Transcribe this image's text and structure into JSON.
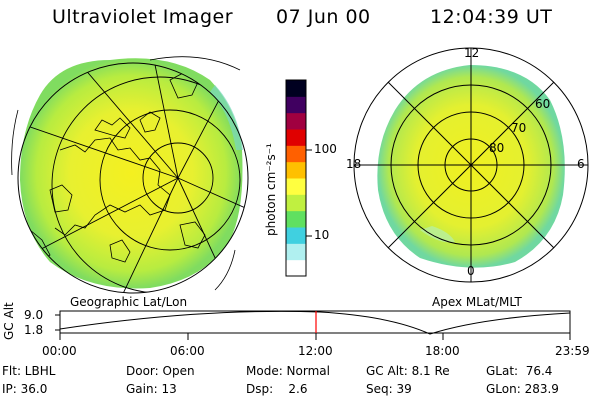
{
  "header": {
    "instrument": "Ultraviolet Imager",
    "date": "07 Jun 00",
    "time": "12:04:39 UT"
  },
  "left_panel": {
    "caption": "Geographic Lat/Lon"
  },
  "right_panel": {
    "caption": "Apex MLat/MLT",
    "mlt_labels": [
      "12",
      "18",
      "6",
      "0"
    ],
    "lat_labels": [
      "60",
      "70",
      "80"
    ]
  },
  "colorbar": {
    "unit_label": "photon cm⁻²s⁻¹",
    "tick_100": "100",
    "tick_10": "10",
    "colors": [
      "#ffffff",
      "#b0f0f0",
      "#40d0e0",
      "#60e060",
      "#c0f040",
      "#ffff40",
      "#ffc000",
      "#ff6000",
      "#e00000",
      "#a00040",
      "#400060",
      "#000020"
    ]
  },
  "altitude_plot": {
    "ylabel": "GC Alt",
    "ymax_label": "9.0",
    "ymin_label": "1.8",
    "x_ticks": [
      "00:00",
      "06:00",
      "12:00",
      "18:00",
      "23:59"
    ],
    "marker_color": "#ff0000"
  },
  "info": {
    "flt": "Flt: LBHL",
    "ip": "IP: 36.0",
    "door": "Door: Open",
    "gain": "Gain: 13",
    "mode": "Mode: Normal",
    "dsp": "Dsp:    2.6",
    "gcalt": "GC Alt: 8.1 Re",
    "seq": "Seq: 39",
    "glat": "GLat:  76.4",
    "glon": "GLon: 283.9"
  }
}
